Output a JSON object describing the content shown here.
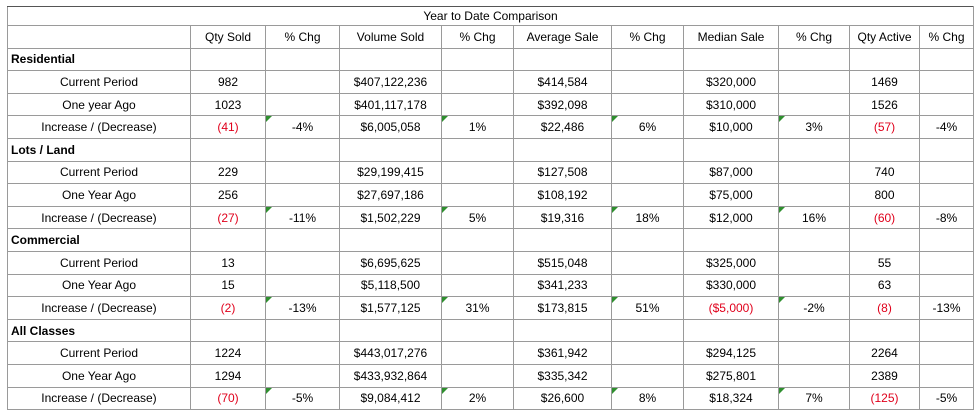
{
  "title": "Year to Date Comparison",
  "headers": [
    "",
    "Qty Sold",
    "% Chg",
    "Volume Sold",
    "% Chg",
    "Average Sale",
    "% Chg",
    "Median Sale",
    "% Chg",
    "Qty Active",
    "% Chg"
  ],
  "sections": [
    {
      "name": "Residential",
      "rows": [
        {
          "label": "Current Period",
          "cells": [
            "982",
            "",
            "$407,122,236",
            "",
            "$414,584",
            "",
            "$320,000",
            "",
            "1469",
            ""
          ]
        },
        {
          "label": "One year Ago",
          "cells": [
            "1023",
            "",
            "$401,117,178",
            "",
            "$392,098",
            "",
            "$310,000",
            "",
            "1526",
            ""
          ]
        },
        {
          "label": "Increase / (Decrease)",
          "cells": [
            "(41)",
            "-4%",
            "$6,005,058",
            "1%",
            "$22,486",
            "6%",
            "$10,000",
            "3%",
            "(57)",
            "-4%"
          ]
        }
      ]
    },
    {
      "name": "Lots / Land",
      "rows": [
        {
          "label": "Current Period",
          "cells": [
            "229",
            "",
            "$29,199,415",
            "",
            "$127,508",
            "",
            "$87,000",
            "",
            "740",
            ""
          ]
        },
        {
          "label": "One Year Ago",
          "cells": [
            "256",
            "",
            "$27,697,186",
            "",
            "$108,192",
            "",
            "$75,000",
            "",
            "800",
            ""
          ]
        },
        {
          "label": "Increase / (Decrease)",
          "cells": [
            "(27)",
            "-11%",
            "$1,502,229",
            "5%",
            "$19,316",
            "18%",
            "$12,000",
            "16%",
            "(60)",
            "-8%"
          ]
        }
      ]
    },
    {
      "name": "Commercial",
      "rows": [
        {
          "label": "Current Period",
          "cells": [
            "13",
            "",
            "$6,695,625",
            "",
            "$515,048",
            "",
            "$325,000",
            "",
            "55",
            ""
          ]
        },
        {
          "label": "One Year Ago",
          "cells": [
            "15",
            "",
            "$5,118,500",
            "",
            "$341,233",
            "",
            "$330,000",
            "",
            "63",
            ""
          ]
        },
        {
          "label": "Increase / (Decrease)",
          "cells": [
            "(2)",
            "-13%",
            "$1,577,125",
            "31%",
            "$173,815",
            "51%",
            "($5,000)",
            "-2%",
            "(8)",
            "-13%"
          ]
        }
      ]
    },
    {
      "name": "All Classes",
      "rows": [
        {
          "label": "Current Period",
          "cells": [
            "1224",
            "",
            "$443,017,276",
            "",
            "$361,942",
            "",
            "$294,125",
            "",
            "2264",
            ""
          ]
        },
        {
          "label": "One Year Ago",
          "cells": [
            "1294",
            "",
            "$433,932,864",
            "",
            "$335,342",
            "",
            "$275,801",
            "",
            "2389",
            ""
          ]
        },
        {
          "label": "Increase / (Decrease)",
          "cells": [
            "(70)",
            "-5%",
            "$9,084,412",
            "2%",
            "$26,600",
            "8%",
            "$18,324",
            "7%",
            "(125)",
            "-5%"
          ]
        }
      ]
    }
  ],
  "colors": {
    "negative": "#e0001b",
    "flag": "#2f8f2f",
    "grid": "#9a9a9a"
  }
}
